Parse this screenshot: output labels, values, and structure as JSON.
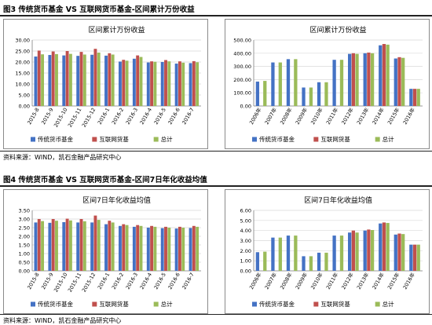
{
  "figure3": {
    "title": "图3 传统货币基金 VS 互联网货币基金-区间累计万份收益",
    "source": "资料来源：WIND，凯石金融产品研究中心"
  },
  "figure4": {
    "title": "图4 传统货币基金 VS 互联网货币基金-区间7日年化收益均值",
    "source": "资料来源：WIND，凯石金融产品研究中心"
  },
  "colors": {
    "series1": "#4472C4",
    "series2": "#C0504D",
    "series3": "#9BBB59",
    "grid": "#D9D9D9",
    "axis": "#7F7F7F"
  },
  "chart_data": [
    {
      "id": "c1",
      "type": "bar",
      "title": "区间累计万份收益",
      "categories": [
        "2015-8",
        "2015-9",
        "2015-10",
        "2015-11",
        "2015-12",
        "2016-1",
        "2016-2",
        "2016-3",
        "2016-4",
        "2016-5",
        "2016-6",
        "2016-7"
      ],
      "ylim": [
        0,
        30
      ],
      "yticks": [
        0,
        5,
        10,
        15,
        20,
        25,
        30
      ],
      "ytick_labels": [
        "0.00",
        "5.00",
        "10.00",
        "15.00",
        "20.00",
        "25.00",
        "30.00"
      ],
      "series": [
        {
          "name": "传统货币基金",
          "values": [
            22.5,
            23.2,
            23.0,
            22.8,
            23.3,
            22.9,
            20.2,
            21.5,
            19.8,
            20.0,
            19.3,
            19.5
          ]
        },
        {
          "name": "互联网货基",
          "values": [
            25.2,
            24.8,
            25.0,
            24.6,
            26.0,
            24.0,
            21.0,
            23.0,
            20.3,
            20.9,
            20.3,
            20.4
          ]
        },
        {
          "name": "总计",
          "values": [
            23.5,
            23.6,
            23.7,
            23.4,
            24.3,
            23.4,
            20.6,
            22.3,
            20.1,
            20.3,
            19.7,
            19.9
          ]
        }
      ],
      "legend": "bottom"
    },
    {
      "id": "c2",
      "type": "bar",
      "title": "区间累计万份收益",
      "categories": [
        "2006年",
        "2007年",
        "2008年",
        "2009年",
        "2010年",
        "2011年",
        "2012年",
        "2013年",
        "2014年",
        "2015年",
        "2016年"
      ],
      "ylim": [
        0,
        500
      ],
      "yticks": [
        0,
        100,
        200,
        300,
        400,
        500
      ],
      "ytick_labels": [
        "0.00",
        "100.00",
        "200.00",
        "300.00",
        "400.00",
        "500.00"
      ],
      "series": [
        {
          "name": "传统货币基金",
          "values": [
            185,
            330,
            355,
            140,
            180,
            350,
            395,
            400,
            460,
            360,
            130
          ]
        },
        {
          "name": "互联网货基",
          "values": [
            null,
            null,
            null,
            null,
            null,
            null,
            400,
            405,
            470,
            370,
            130
          ]
        },
        {
          "name": "总计",
          "values": [
            190,
            330,
            355,
            140,
            180,
            350,
            395,
            400,
            465,
            365,
            130
          ]
        }
      ],
      "legend": "bottom"
    },
    {
      "id": "c3",
      "type": "bar",
      "title": "区间7日年化收益均值",
      "categories": [
        "2015-8",
        "2015-9",
        "2015-10",
        "2015-11",
        "2015-12",
        "2016-1",
        "2016-2",
        "2016-3",
        "2016-4",
        "2016-5",
        "2016-6",
        "2016-7"
      ],
      "ylim": [
        0,
        3.5
      ],
      "yticks": [
        0,
        0.5,
        1,
        1.5,
        2,
        2.5,
        3,
        3.5
      ],
      "ytick_labels": [
        "0.00",
        "0.50",
        "1.00",
        "1.50",
        "2.00",
        "2.50",
        "3.00",
        "3.50"
      ],
      "series": [
        {
          "name": "传统货币基金",
          "values": [
            2.8,
            2.78,
            2.82,
            2.8,
            2.8,
            2.7,
            2.6,
            2.55,
            2.5,
            2.47,
            2.45,
            2.48
          ]
        },
        {
          "name": "互联网货基",
          "values": [
            3.0,
            3.0,
            3.02,
            3.0,
            3.2,
            2.9,
            2.7,
            2.65,
            2.6,
            2.55,
            2.55,
            2.6
          ]
        },
        {
          "name": "总计",
          "values": [
            2.88,
            2.9,
            2.92,
            2.87,
            2.95,
            2.8,
            2.65,
            2.6,
            2.55,
            2.5,
            2.5,
            2.55
          ]
        }
      ],
      "legend": "bottom"
    },
    {
      "id": "c4",
      "type": "bar",
      "title": "区间7日年化收益均值",
      "categories": [
        "2006年",
        "2007年",
        "2008年",
        "2009年",
        "2010年",
        "2011年",
        "2012年",
        "2013年",
        "2014年",
        "2015年",
        "2016年"
      ],
      "ylim": [
        0,
        6
      ],
      "yticks": [
        0,
        1,
        2,
        3,
        4,
        5,
        6
      ],
      "ytick_labels": [
        "0.00",
        "1.00",
        "2.00",
        "3.00",
        "4.00",
        "5.00",
        "6.00"
      ],
      "series": [
        {
          "name": "传统货币基金",
          "values": [
            1.85,
            3.3,
            3.5,
            1.45,
            1.8,
            3.5,
            3.8,
            4.0,
            4.7,
            3.6,
            2.6
          ]
        },
        {
          "name": "互联网货基",
          "values": [
            null,
            null,
            null,
            null,
            null,
            null,
            4.0,
            4.1,
            4.8,
            3.7,
            2.6
          ]
        },
        {
          "name": "总计",
          "values": [
            1.9,
            3.3,
            3.5,
            1.45,
            1.8,
            3.5,
            3.8,
            4.05,
            4.75,
            3.65,
            2.6
          ]
        }
      ],
      "legend": "bottom"
    }
  ]
}
